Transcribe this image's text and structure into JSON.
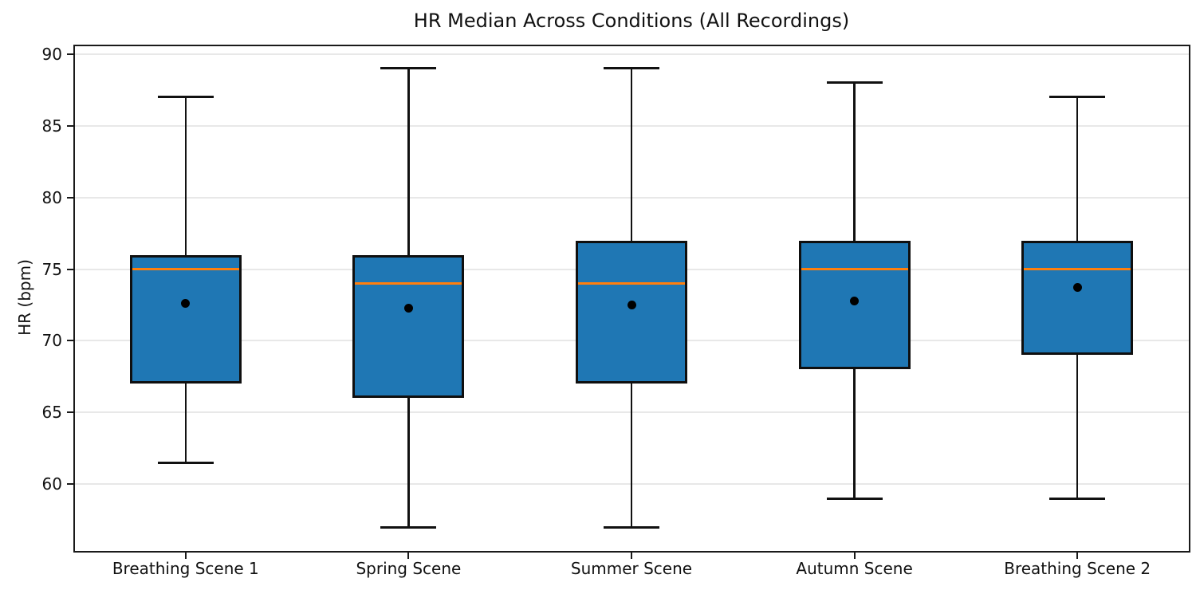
{
  "chart_data": {
    "type": "boxplot",
    "title": "HR Median Across Conditions (All Recordings)",
    "xlabel": "",
    "ylabel": "HR (bpm)",
    "categories": [
      "Breathing Scene 1",
      "Spring Scene",
      "Summer Scene",
      "Autumn Scene",
      "Breathing Scene 2"
    ],
    "yticks": [
      60,
      65,
      70,
      75,
      80,
      85,
      90
    ],
    "ylim": [
      55.4,
      90.6
    ],
    "grid": "horizontal",
    "legend": "none",
    "colors": {
      "box_fill": "#1f77b4",
      "box_edge": "#0f0f0f",
      "median_line": "#ff7f0e",
      "whisker": "#111111",
      "mean_marker": "#000000",
      "gridline": "#e8e8e8",
      "background": "#ffffff"
    },
    "boxes": [
      {
        "label": "Breathing Scene 1",
        "whisker_low": 61.5,
        "q1": 67,
        "median": 75,
        "q3": 76,
        "whisker_high": 87,
        "mean": 72.6
      },
      {
        "label": "Spring Scene",
        "whisker_low": 57,
        "q1": 66,
        "median": 74,
        "q3": 76,
        "whisker_high": 89,
        "mean": 72.3
      },
      {
        "label": "Summer Scene",
        "whisker_low": 57,
        "q1": 67,
        "median": 74,
        "q3": 77,
        "whisker_high": 89,
        "mean": 72.5
      },
      {
        "label": "Autumn Scene",
        "whisker_low": 59,
        "q1": 68,
        "median": 75,
        "q3": 77,
        "whisker_high": 88,
        "mean": 72.8
      },
      {
        "label": "Breathing Scene 2",
        "whisker_low": 59,
        "q1": 69,
        "median": 75,
        "q3": 77,
        "whisker_high": 87,
        "mean": 73.7
      }
    ]
  }
}
